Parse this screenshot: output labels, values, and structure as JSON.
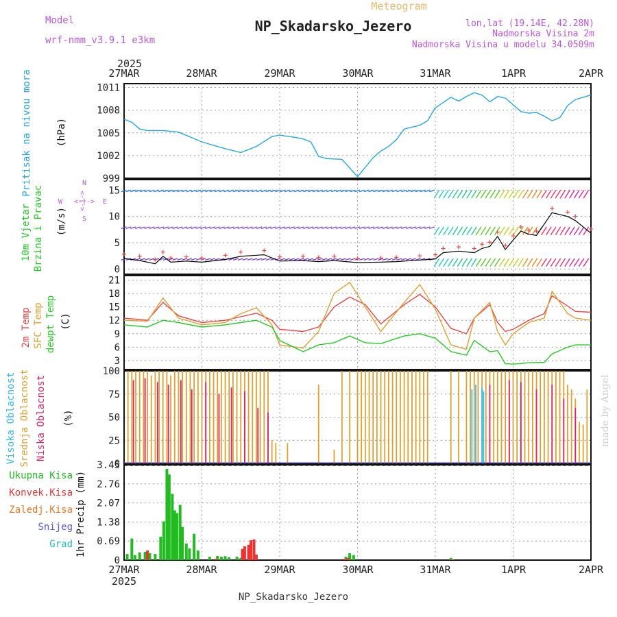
{
  "header": {
    "model_label": "Model",
    "model_name": "wrf-nmm_v3.9.1 e3km",
    "meteogram_label": "Meteogram",
    "station_title": "NP_Skadarsko_Jezero",
    "lonlat": "lon,lat (19.14E, 42.28N)",
    "altitude": "Nadmorska Visina 2m",
    "model_altitude": "Nadmorska Visina u modelu 34.0509m",
    "year_top": "2025",
    "year_bottom": "2025",
    "footer_station": "NP_Skadarsko_Jezero",
    "watermark": "made by Angel"
  },
  "colors": {
    "pressure": "#22a7e6",
    "t2m": "#ee4444",
    "sfc": "#e0a030",
    "dew": "#22cc22",
    "cloud_high": "#33bbee",
    "cloud_mid": "#e0a030",
    "cloud_low": "#dd2266",
    "rain_total": "#22bb22",
    "rain_conv": "#ee3333",
    "frozen": "#ee7722",
    "snow": "#5555ee",
    "hail": "#22bbbb",
    "model_text": "#bb55dd"
  },
  "chart_data": [
    {
      "id": "pressure",
      "type": "line",
      "ylabel_side": "Pritisak na nivou mora",
      "ylabel_unit": "(hPa)",
      "x_ticks": [
        "27MAR",
        "28MAR",
        "29MAR",
        "30MAR",
        "31MAR",
        "1APR",
        "2APR"
      ],
      "ylim": [
        999,
        1011.5
      ],
      "y_ticks": [
        999,
        1002,
        1005,
        1008,
        1011
      ],
      "series": [
        {
          "name": "MSLP",
          "x": [
            0,
            0.1,
            0.2,
            0.3,
            0.5,
            0.7,
            1.0,
            1.3,
            1.5,
            1.7,
            1.9,
            2.0,
            2.2,
            2.3,
            2.4,
            2.5,
            2.6,
            2.8,
            3.0,
            3.2,
            3.3,
            3.4,
            3.5,
            3.6,
            3.8,
            3.9,
            4.0,
            4.2,
            4.3,
            4.4,
            4.5,
            4.6,
            4.7,
            4.8,
            4.9,
            5.0,
            5.1,
            5.2,
            5.3,
            5.4,
            5.5,
            5.6,
            5.7,
            5.8,
            5.9,
            6.0
          ],
          "values": [
            1006.8,
            1006.4,
            1005.5,
            1005.3,
            1005.3,
            1005.1,
            1003.8,
            1002.9,
            1002.4,
            1003.2,
            1004.5,
            1004.7,
            1004.4,
            1004.2,
            1003.8,
            1001.9,
            1001.6,
            1001.5,
            999.2,
            1001.7,
            1002.6,
            1003.2,
            1004.1,
            1005.5,
            1006.0,
            1006.6,
            1008.3,
            1009.7,
            1009.2,
            1009.8,
            1010.3,
            1010.0,
            1009.1,
            1009.8,
            1009.6,
            1008.7,
            1007.8,
            1007.6,
            1007.7,
            1007.2,
            1006.6,
            1007.0,
            1008.6,
            1009.4,
            1009.7,
            1010.0
          ]
        }
      ]
    },
    {
      "id": "wind",
      "type": "line",
      "ylabel_side_1": "10m Vjetar",
      "ylabel_side_2": "Brzina i Pravac",
      "ylabel_unit": "(m/s)",
      "compass_n": "N",
      "compass_w": "W",
      "compass_e": "E",
      "compass_s": "S",
      "compass_glyph": "<-|->",
      "ylim": [
        -1,
        17
      ],
      "y_ticks": [
        0,
        5,
        10,
        15
      ],
      "series": [
        {
          "name": "wind speed",
          "x": [
            0,
            0.2,
            0.4,
            0.5,
            0.6,
            0.8,
            1.0,
            1.3,
            1.5,
            1.8,
            2.0,
            2.3,
            2.5,
            2.7,
            3.0,
            3.3,
            3.5,
            3.8,
            4.0,
            4.1,
            4.3,
            4.5,
            4.6,
            4.7,
            4.8,
            4.9,
            5.0,
            5.1,
            5.2,
            5.3,
            5.5,
            5.7,
            5.8,
            6.0
          ],
          "values": [
            2.0,
            1.6,
            1.0,
            2.4,
            1.3,
            1.5,
            1.3,
            1.8,
            2.4,
            2.7,
            1.5,
            1.6,
            1.4,
            1.6,
            1.2,
            1.3,
            1.4,
            1.7,
            1.9,
            3.1,
            3.4,
            3.1,
            3.9,
            4.3,
            6.2,
            3.7,
            5.5,
            7.2,
            6.6,
            6.4,
            10.7,
            10.0,
            9.2,
            6.8
          ]
        }
      ],
      "barb_rows": [
        {
          "name": "wind 15m/s row",
          "speed": 15
        },
        {
          "name": "wind 8m/s row",
          "speed": 8
        },
        {
          "name": "wind 2m/s row",
          "speed": 2
        }
      ]
    },
    {
      "id": "temperature",
      "type": "line",
      "ylabel_side_1": "2m Temp",
      "ylabel_side_2": "SFC Temp",
      "ylabel_side_3": "dewpt Temp",
      "ylabel_unit": "(C)",
      "ylim": [
        1,
        22
      ],
      "y_ticks": [
        3,
        6,
        9,
        12,
        15,
        18,
        21
      ],
      "series": [
        {
          "name": "2m Temp",
          "x": [
            0,
            0.3,
            0.5,
            0.7,
            1.0,
            1.3,
            1.5,
            1.7,
            1.9,
            2.0,
            2.3,
            2.5,
            2.7,
            2.9,
            3.1,
            3.3,
            3.6,
            3.8,
            4.0,
            4.2,
            4.4,
            4.5,
            4.7,
            4.8,
            4.9,
            5.0,
            5.2,
            5.4,
            5.5,
            5.7,
            5.8,
            6.0
          ],
          "values": [
            12.5,
            12.0,
            16.0,
            13.0,
            11.5,
            12.0,
            12.8,
            13.6,
            12.0,
            10.0,
            9.5,
            10.5,
            15.0,
            17.2,
            15.5,
            11.2,
            15.5,
            17.8,
            15.0,
            10.2,
            9.0,
            12.5,
            15.5,
            11.5,
            9.5,
            10.0,
            12.0,
            13.5,
            17.5,
            15.2,
            14.0,
            13.8
          ]
        },
        {
          "name": "SFC Temp",
          "x": [
            0,
            0.3,
            0.5,
            0.7,
            1.0,
            1.3,
            1.5,
            1.7,
            1.9,
            2.0,
            2.3,
            2.5,
            2.7,
            2.9,
            3.1,
            3.3,
            3.6,
            3.8,
            4.0,
            4.2,
            4.4,
            4.5,
            4.7,
            4.8,
            4.9,
            5.0,
            5.2,
            5.4,
            5.5,
            5.7,
            5.8,
            6.0
          ],
          "values": [
            12.0,
            11.8,
            17.0,
            12.5,
            11.0,
            11.5,
            13.5,
            14.8,
            11.0,
            6.5,
            5.8,
            9.5,
            18.0,
            20.5,
            15.0,
            9.5,
            16.0,
            20.0,
            14.5,
            6.5,
            5.5,
            12.5,
            16.0,
            9.5,
            6.5,
            9.0,
            11.5,
            12.5,
            18.5,
            13.5,
            12.5,
            12.0
          ]
        },
        {
          "name": "dewpt Temp",
          "x": [
            0,
            0.3,
            0.5,
            0.7,
            1.0,
            1.3,
            1.5,
            1.7,
            1.9,
            2.0,
            2.3,
            2.5,
            2.7,
            2.9,
            3.1,
            3.3,
            3.6,
            3.8,
            4.0,
            4.2,
            4.4,
            4.5,
            4.7,
            4.8,
            4.9,
            5.0,
            5.2,
            5.4,
            5.5,
            5.7,
            5.8,
            6.0
          ],
          "values": [
            11.0,
            10.5,
            12.0,
            11.5,
            10.5,
            11.0,
            11.5,
            12.0,
            10.5,
            7.5,
            5.0,
            6.5,
            7.0,
            8.5,
            7.0,
            6.8,
            8.5,
            9.0,
            8.0,
            5.0,
            4.2,
            7.5,
            5.0,
            5.2,
            2.3,
            2.2,
            2.5,
            2.6,
            4.5,
            6.0,
            6.5,
            6.5
          ]
        }
      ]
    },
    {
      "id": "cloud",
      "type": "bar",
      "ylabel_side_1": "Visoka Oblacnost",
      "ylabel_side_2": "Srednja Oblacnost",
      "ylabel_side_3": "Niska Oblacnost",
      "ylabel_unit": "(%)",
      "ylim": [
        0,
        100
      ],
      "y_ticks": [
        0,
        25,
        50,
        75,
        100
      ],
      "series": [
        {
          "name": "Srednja Oblacnost",
          "x": [
            0.05,
            0.1,
            0.15,
            0.2,
            0.25,
            0.3,
            0.35,
            0.4,
            0.45,
            0.5,
            0.55,
            0.6,
            0.65,
            0.7,
            0.75,
            0.8,
            0.85,
            0.9,
            0.95,
            1.0,
            1.05,
            1.1,
            1.15,
            1.2,
            1.25,
            1.3,
            1.35,
            1.4,
            1.45,
            1.5,
            1.55,
            1.6,
            1.65,
            1.7,
            1.75,
            1.8,
            1.85,
            1.9,
            1.95,
            2.1,
            2.5,
            2.7,
            2.8,
            2.9,
            3.0,
            3.05,
            3.1,
            3.15,
            3.2,
            3.25,
            3.3,
            3.35,
            3.4,
            3.45,
            3.5,
            3.55,
            3.6,
            3.65,
            3.7,
            3.75,
            3.8,
            3.85,
            3.9,
            4.2,
            4.3,
            4.4,
            4.45,
            4.5,
            4.55,
            4.6,
            4.65,
            4.7,
            4.75,
            4.8,
            4.85,
            4.9,
            4.95,
            5.0,
            5.05,
            5.1,
            5.15,
            5.2,
            5.25,
            5.3,
            5.35,
            5.4,
            5.45,
            5.5,
            5.55,
            5.6,
            5.65,
            5.7,
            5.75,
            5.8,
            5.85,
            5.9,
            5.95
          ],
          "values": [
            100,
            100,
            100,
            100,
            100,
            100,
            95,
            100,
            100,
            100,
            100,
            95,
            100,
            100,
            100,
            100,
            100,
            100,
            100,
            100,
            100,
            100,
            100,
            100,
            100,
            100,
            100,
            100,
            100,
            100,
            100,
            100,
            100,
            100,
            100,
            100,
            100,
            25,
            22,
            22,
            85,
            15,
            100,
            100,
            100,
            100,
            100,
            100,
            100,
            100,
            100,
            100,
            100,
            100,
            100,
            100,
            100,
            100,
            100,
            100,
            100,
            100,
            100,
            100,
            100,
            100,
            100,
            100,
            100,
            100,
            100,
            100,
            100,
            100,
            100,
            100,
            100,
            100,
            100,
            100,
            100,
            100,
            100,
            100,
            100,
            100,
            100,
            100,
            100,
            100,
            100,
            85,
            80,
            70,
            45,
            42,
            80
          ]
        },
        {
          "name": "Niska Oblacnost",
          "x": [
            0.12,
            0.27,
            0.43,
            0.57,
            0.73,
            0.87,
            1.05,
            1.22,
            1.38,
            1.55,
            1.72,
            1.85,
            4.7,
            4.95,
            5.1,
            5.3,
            5.5,
            5.65,
            5.8
          ],
          "values": [
            90,
            92,
            88,
            85,
            90,
            80,
            88,
            75,
            82,
            78,
            60,
            55,
            85,
            90,
            88,
            80,
            85,
            70,
            60
          ]
        },
        {
          "name": "Visoka Oblacnost",
          "x": [
            4.47,
            4.52,
            4.6,
            4.62
          ],
          "values": [
            80,
            85,
            82,
            78
          ]
        }
      ]
    },
    {
      "id": "precip",
      "type": "bar",
      "ylabel_unit": "1hr Precip (mm)",
      "legend": [
        "Ukupna Kisa",
        "Konvek.Kisa",
        "Zaledj.Kisa",
        "Snijeg",
        "Grad"
      ],
      "ylim": [
        0,
        3.45
      ],
      "y_ticks": [
        0,
        0.69,
        1.38,
        2.07,
        2.76,
        3.45
      ],
      "series": [
        {
          "name": "Ukupna Kisa",
          "x": [
            0.04,
            0.1,
            0.14,
            0.2,
            0.27,
            0.33,
            0.4,
            0.47,
            0.51,
            0.55,
            0.58,
            0.62,
            0.65,
            0.68,
            0.72,
            0.75,
            0.8,
            0.84,
            0.9,
            0.95,
            1.1,
            1.2,
            1.25,
            1.3,
            1.35,
            1.45,
            1.5,
            2.85,
            2.9,
            2.95,
            4.2
          ],
          "values": [
            0.22,
            0.78,
            0.18,
            0.28,
            0.3,
            0.25,
            0.22,
            0.85,
            1.4,
            3.3,
            3.1,
            2.4,
            1.8,
            1.7,
            2.0,
            1.2,
            0.6,
            0.42,
            0.95,
            0.35,
            0.12,
            0.15,
            0.12,
            0.14,
            0.1,
            0.12,
            0.08,
            0.12,
            0.25,
            0.18,
            0.08
          ]
        },
        {
          "name": "Konvek.Kisa",
          "x": [
            0.3,
            1.18,
            1.52,
            1.55,
            1.6,
            1.63,
            1.67,
            1.7,
            2.84,
            2.88,
            4.22
          ],
          "values": [
            0.35,
            0.05,
            0.4,
            0.5,
            0.55,
            0.72,
            0.75,
            0.2,
            0.05,
            0.08,
            0.03
          ]
        }
      ]
    }
  ]
}
